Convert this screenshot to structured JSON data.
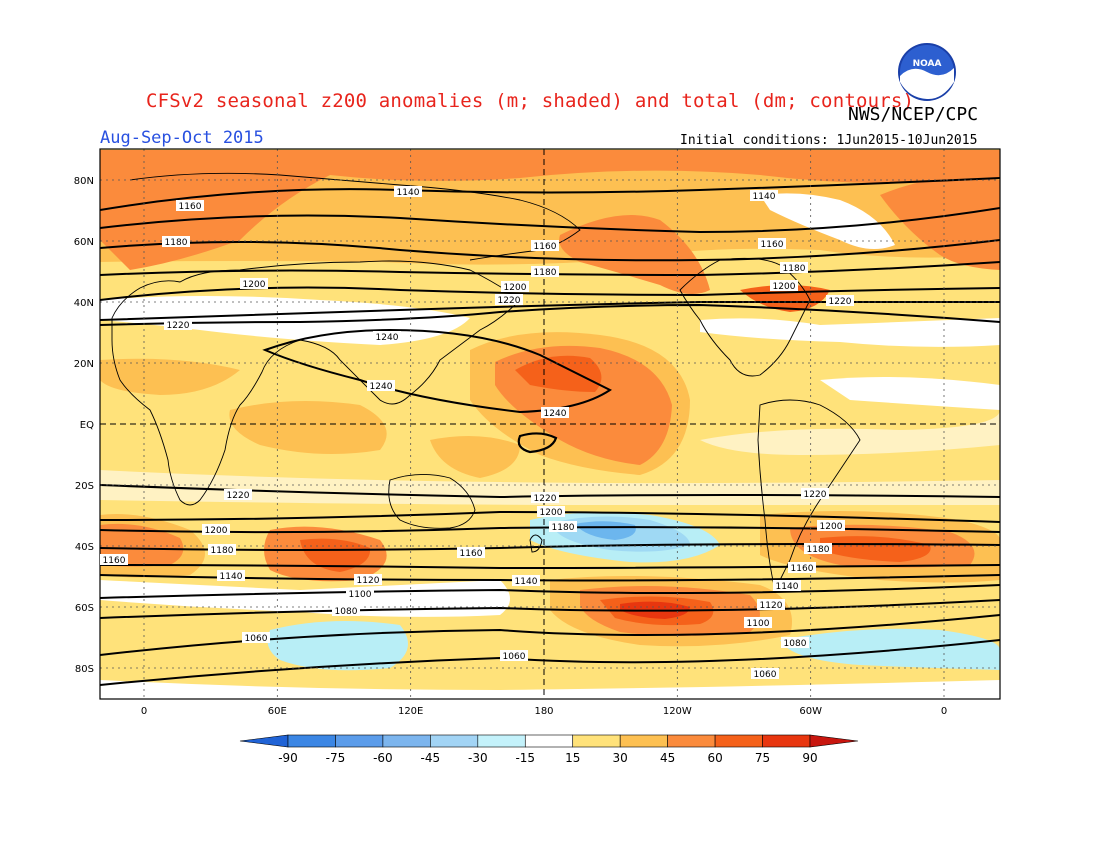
{
  "header": {
    "title": "CFSv2 seasonal z200 anomalies (m; shaded) and total (dm; contours)",
    "agency": "NWS/NCEP/CPC",
    "season": "Aug-Sep-Oct 2015",
    "initial_conditions": "Initial conditions: 1Jun2015-10Jun2015",
    "logo_text": "NOAA"
  },
  "map": {
    "lat_labels": [
      "80N",
      "60N",
      "40N",
      "20N",
      "EQ",
      "20S",
      "40S",
      "60S",
      "80S"
    ],
    "lat_values": [
      80,
      60,
      40,
      20,
      0,
      -20,
      -40,
      -60,
      -80
    ],
    "lon_labels": [
      "0",
      "60E",
      "120E",
      "180",
      "120W",
      "60W",
      "0"
    ],
    "lon_values": [
      0,
      60,
      120,
      180,
      240,
      300,
      360
    ],
    "contour_labels": [
      "1060",
      "1080",
      "1100",
      "1120",
      "1140",
      "1160",
      "1180",
      "1200",
      "1220",
      "1240"
    ],
    "colors": {
      "pos_15": "#ffe27a",
      "pos_30": "#fdc052",
      "pos_45": "#fb8b3c",
      "pos_60": "#f5611a",
      "pos_75": "#e8360f",
      "neg_15": "#b8eef6",
      "neg_30": "#9fd9f4",
      "neg_45": "#6cb6ee",
      "contour": "#000000",
      "coast": "#000000"
    }
  },
  "colorbar": {
    "tick_labels": [
      "-90",
      "-75",
      "-60",
      "-45",
      "-30",
      "-15",
      "15",
      "30",
      "45",
      "60",
      "75",
      "90"
    ],
    "colors": [
      "#2063d6",
      "#3b86e4",
      "#5b9cea",
      "#7cb5ee",
      "#a2d4f5",
      "#c4f2fb",
      "#ffffff",
      "#ffe27a",
      "#fdc052",
      "#fb8b3c",
      "#f5611a",
      "#e8360f",
      "#c8160f"
    ]
  }
}
